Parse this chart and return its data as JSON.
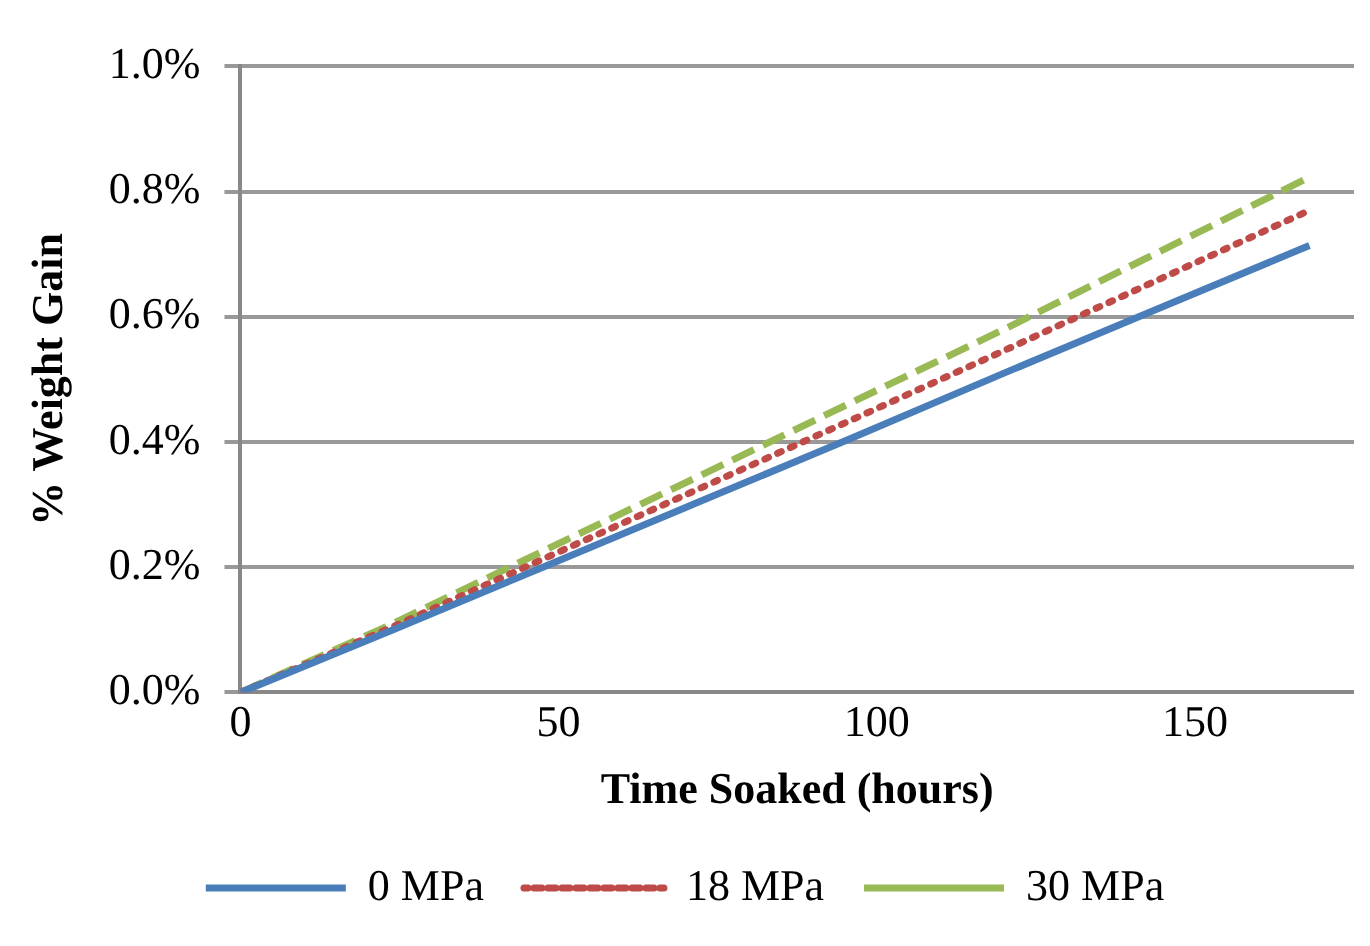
{
  "chart_data": {
    "type": "line",
    "xlabel": "Time Soaked (hours)",
    "ylabel": "% Weight Gain",
    "x": [
      0,
      24,
      48,
      72,
      96,
      120,
      144,
      168
    ],
    "series": [
      {
        "name": "0 MPa",
        "color": "#4a7ebb",
        "line_style": "solid",
        "values": [
          0,
          0.1,
          0.202,
          0.304,
          0.406,
          0.51,
          0.612,
          0.714
        ]
      },
      {
        "name": "18 MPa",
        "color": "#be4b48",
        "line_style": "dotted",
        "values": [
          0,
          0.105,
          0.215,
          0.325,
          0.435,
          0.546,
          0.658,
          0.77
        ]
      },
      {
        "name": "30 MPa",
        "color": "#98b954",
        "line_style": "dashed",
        "values": [
          0,
          0.11,
          0.228,
          0.345,
          0.463,
          0.58,
          0.702,
          0.823
        ]
      }
    ],
    "xlim": [
      0,
      175
    ],
    "xticks": [
      0,
      50,
      100,
      150
    ],
    "ylim": [
      0,
      1.0
    ],
    "yticks": [
      {
        "value": 0,
        "label": "0.0%"
      },
      {
        "value": 0.2,
        "label": "0.2%"
      },
      {
        "value": 0.4,
        "label": "0.4%"
      },
      {
        "value": 0.6,
        "label": "0.6%"
      },
      {
        "value": 0.8,
        "label": "0.8%"
      },
      {
        "value": 1.0,
        "label": "1.0%"
      }
    ],
    "grid": "y",
    "legend": "bottom",
    "marker": "none"
  }
}
